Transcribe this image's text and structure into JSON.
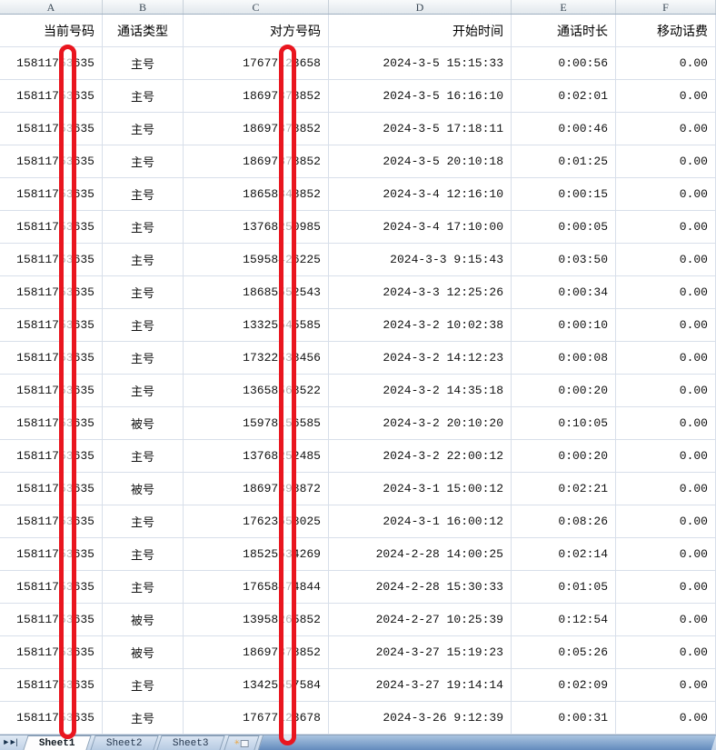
{
  "spreadsheet": {
    "column_letters": [
      "A",
      "B",
      "C",
      "D",
      "E",
      "F"
    ],
    "field_names": [
      "当前号码",
      "通话类型",
      "对方号码",
      "开始时间",
      "通话时长",
      "移动话费"
    ],
    "rows": [
      {
        "a": "15811753635",
        "b": "主号",
        "c": "17677123658",
        "d": "2024-3-5 15:15:33",
        "e": "0:00:56",
        "f": "0.00"
      },
      {
        "a": "15811753635",
        "b": "主号",
        "c": "18697378852",
        "d": "2024-3-5 16:16:10",
        "e": "0:02:01",
        "f": "0.00"
      },
      {
        "a": "15811753635",
        "b": "主号",
        "c": "18697378852",
        "d": "2024-3-5 17:18:11",
        "e": "0:00:46",
        "f": "0.00"
      },
      {
        "a": "15811753635",
        "b": "主号",
        "c": "18697378852",
        "d": "2024-3-5 20:10:18",
        "e": "0:01:25",
        "f": "0.00"
      },
      {
        "a": "15811753635",
        "b": "主号",
        "c": "18658848852",
        "d": "2024-3-4 12:16:10",
        "e": "0:00:15",
        "f": "0.00"
      },
      {
        "a": "15811753635",
        "b": "主号",
        "c": "13768250985",
        "d": "2024-3-4 17:10:00",
        "e": "0:00:05",
        "f": "0.00"
      },
      {
        "a": "15811753635",
        "b": "主号",
        "c": "15958426225",
        "d": "2024-3-3 9:15:43",
        "e": "0:03:50",
        "f": "0.00"
      },
      {
        "a": "15811753635",
        "b": "主号",
        "c": "18685552543",
        "d": "2024-3-3 12:25:26",
        "e": "0:00:34",
        "f": "0.00"
      },
      {
        "a": "15811753635",
        "b": "主号",
        "c": "13325545585",
        "d": "2024-3-2 10:02:38",
        "e": "0:00:10",
        "f": "0.00"
      },
      {
        "a": "15811753635",
        "b": "主号",
        "c": "17322538456",
        "d": "2024-3-2 14:12:23",
        "e": "0:00:08",
        "f": "0.00"
      },
      {
        "a": "15811753635",
        "b": "主号",
        "c": "13658568522",
        "d": "2024-3-2 14:35:18",
        "e": "0:00:20",
        "f": "0.00"
      },
      {
        "a": "15811753635",
        "b": "被号",
        "c": "15978156585",
        "d": "2024-3-2 20:10:20",
        "e": "0:10:05",
        "f": "0.00"
      },
      {
        "a": "15811753635",
        "b": "主号",
        "c": "13768252485",
        "d": "2024-3-2 22:00:12",
        "e": "0:00:20",
        "f": "0.00"
      },
      {
        "a": "15811753635",
        "b": "被号",
        "c": "18697398872",
        "d": "2024-3-1 15:00:12",
        "e": "0:02:21",
        "f": "0.00"
      },
      {
        "a": "15811753635",
        "b": "主号",
        "c": "17623558025",
        "d": "2024-3-1 16:00:12",
        "e": "0:08:26",
        "f": "0.00"
      },
      {
        "a": "15811753635",
        "b": "主号",
        "c": "18525534269",
        "d": "2024-2-28 14:00:25",
        "e": "0:02:14",
        "f": "0.00"
      },
      {
        "a": "15811753635",
        "b": "主号",
        "c": "17658474844",
        "d": "2024-2-28 15:30:33",
        "e": "0:01:05",
        "f": "0.00"
      },
      {
        "a": "15811753635",
        "b": "被号",
        "c": "13958265852",
        "d": "2024-2-27 10:25:39",
        "e": "0:12:54",
        "f": "0.00"
      },
      {
        "a": "15811753635",
        "b": "被号",
        "c": "18697378852",
        "d": "2024-3-27 15:19:23",
        "e": "0:05:26",
        "f": "0.00"
      },
      {
        "a": "15811753635",
        "b": "主号",
        "c": "13425557584",
        "d": "2024-3-27 19:14:14",
        "e": "0:02:09",
        "f": "0.00"
      },
      {
        "a": "15811753635",
        "b": "主号",
        "c": "17677123678",
        "d": "2024-3-26 9:12:39",
        "e": "0:00:31",
        "f": "0.00"
      }
    ],
    "annotations": {
      "redaction_color": "#e9161f",
      "redaction_note_a": "vertical red capsule covering 7th digit of column A numbers",
      "redaction_note_c": "vertical red capsule covering 6th digit of column C numbers"
    },
    "tabbar": {
      "nav_prev": "►",
      "nav_last": "►|",
      "tabs": [
        "Sheet1",
        "Sheet2",
        "Sheet3"
      ],
      "active_tab": "Sheet1",
      "insert_icon": "✳"
    },
    "colors": {
      "grid_line": "#d8dfea",
      "colhead_bg_bottom": "#e2e8ed",
      "tab_filler_blue": "#638bbd"
    }
  }
}
